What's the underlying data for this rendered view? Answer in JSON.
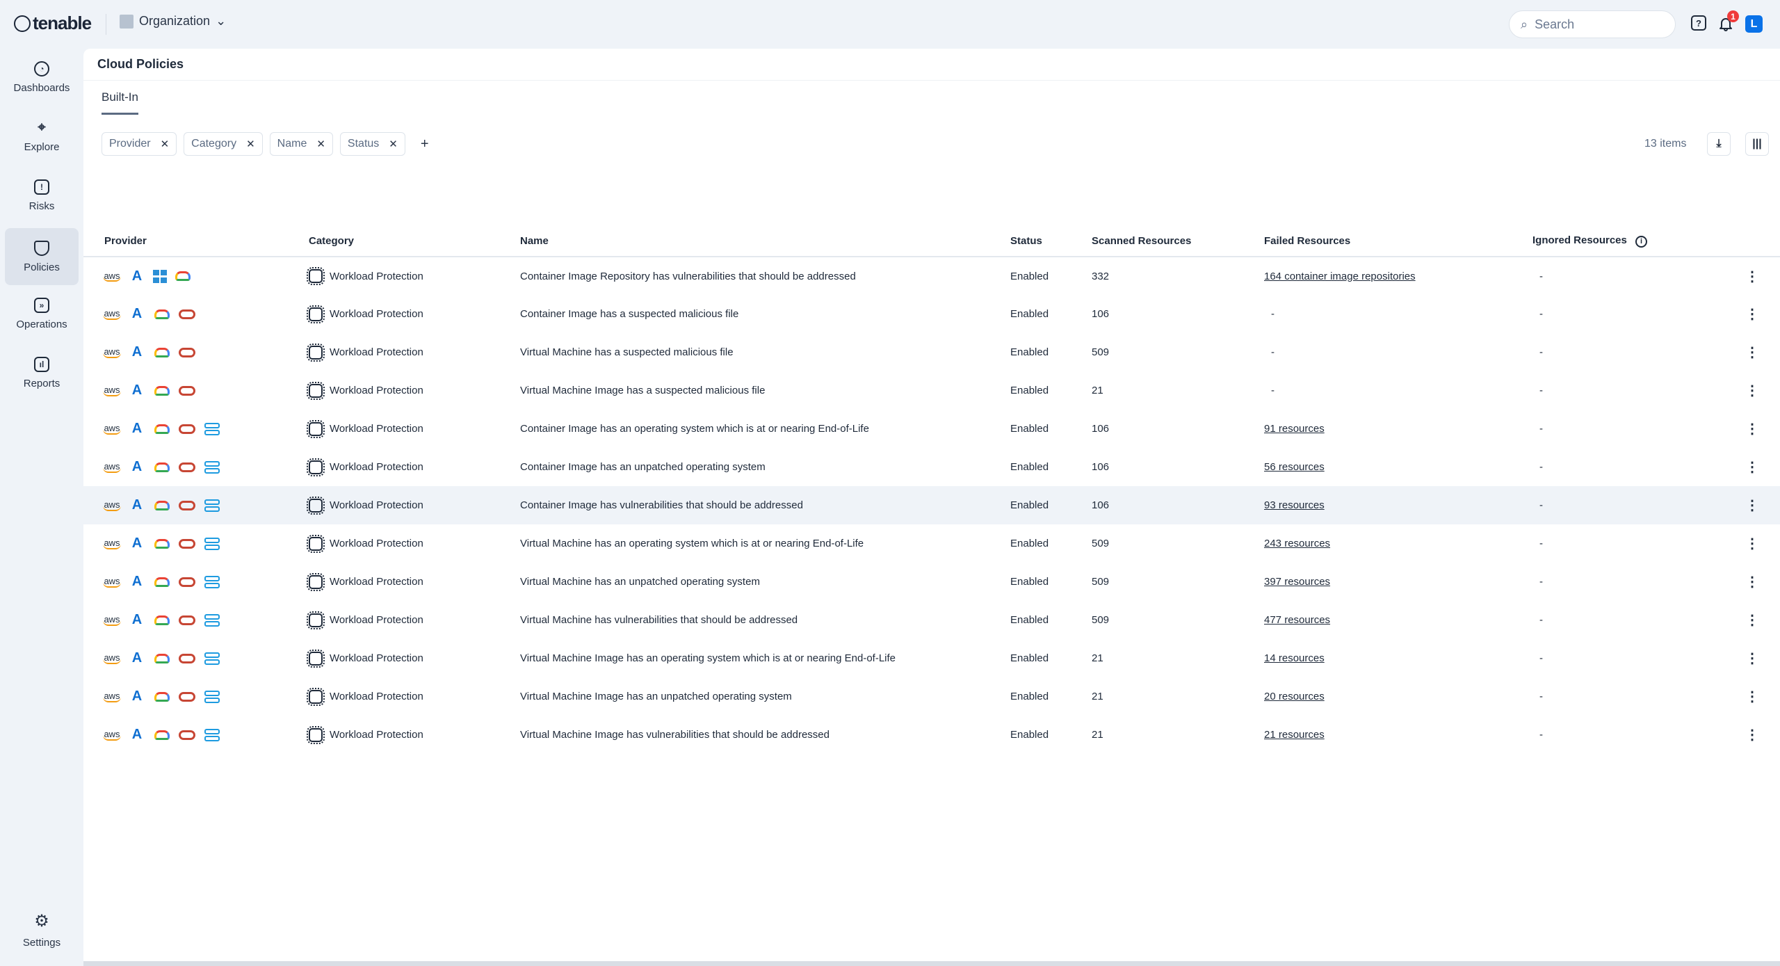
{
  "header": {
    "logo": "tenable",
    "org": "Organization",
    "search_placeholder": "Search",
    "notifications": "1",
    "avatar": "L",
    "help": "?"
  },
  "sidebar": {
    "items": [
      {
        "label": "Dashboards",
        "icon": "pie-chart-icon"
      },
      {
        "label": "Explore",
        "icon": "telescope-icon"
      },
      {
        "label": "Risks",
        "icon": "alert-icon"
      },
      {
        "label": "Policies",
        "icon": "shield-icon",
        "active": true
      },
      {
        "label": "Operations",
        "icon": "chevrons-icon"
      },
      {
        "label": "Reports",
        "icon": "bar-chart-icon"
      }
    ],
    "settings": "Settings"
  },
  "page": {
    "title": "Cloud Policies",
    "tab": "Built-In",
    "filters": [
      "Provider",
      "Category",
      "Name",
      "Status"
    ],
    "add": "+",
    "count": "13 items"
  },
  "table": {
    "columns": [
      "Provider",
      "Category",
      "Name",
      "Status",
      "Scanned Resources",
      "Failed Resources",
      "Ignored Resources"
    ],
    "rows": [
      {
        "providers": [
          "aws",
          "azure",
          "windows",
          "gcp"
        ],
        "category": "Workload Protection",
        "name": "Container Image Repository has vulnerabilities that should be addressed",
        "status": "Enabled",
        "scanned": "332",
        "failed": "164 container image repositories",
        "ignored": "-"
      },
      {
        "providers": [
          "aws",
          "azure",
          "gcp",
          "oracle"
        ],
        "category": "Workload Protection",
        "name": "Container Image has a suspected malicious file",
        "status": "Enabled",
        "scanned": "106",
        "failed": "-",
        "ignored": "-"
      },
      {
        "providers": [
          "aws",
          "azure",
          "gcp",
          "oracle"
        ],
        "category": "Workload Protection",
        "name": "Virtual Machine has a suspected malicious file",
        "status": "Enabled",
        "scanned": "509",
        "failed": "-",
        "ignored": "-"
      },
      {
        "providers": [
          "aws",
          "azure",
          "gcp",
          "oracle"
        ],
        "category": "Workload Protection",
        "name": "Virtual Machine Image has a suspected malicious file",
        "status": "Enabled",
        "scanned": "21",
        "failed": "-",
        "ignored": "-"
      },
      {
        "providers": [
          "aws",
          "azure",
          "gcp",
          "oracle",
          "server"
        ],
        "category": "Workload Protection",
        "name": "Container Image has an operating system which is at or nearing End-of-Life",
        "status": "Enabled",
        "scanned": "106",
        "failed": "91 resources",
        "ignored": "-"
      },
      {
        "providers": [
          "aws",
          "azure",
          "gcp",
          "oracle",
          "server"
        ],
        "category": "Workload Protection",
        "name": "Container Image has an unpatched operating system",
        "status": "Enabled",
        "scanned": "106",
        "failed": "56 resources",
        "ignored": "-"
      },
      {
        "providers": [
          "aws",
          "azure",
          "gcp",
          "oracle",
          "server"
        ],
        "category": "Workload Protection",
        "name": "Container Image has vulnerabilities that should be addressed",
        "status": "Enabled",
        "scanned": "106",
        "failed": "93 resources",
        "ignored": "-",
        "highlighted": true
      },
      {
        "providers": [
          "aws",
          "azure",
          "gcp",
          "oracle",
          "server"
        ],
        "category": "Workload Protection",
        "name": "Virtual Machine has an operating system which is at or nearing End-of-Life",
        "status": "Enabled",
        "scanned": "509",
        "failed": "243 resources",
        "ignored": "-"
      },
      {
        "providers": [
          "aws",
          "azure",
          "gcp",
          "oracle",
          "server"
        ],
        "category": "Workload Protection",
        "name": "Virtual Machine has an unpatched operating system",
        "status": "Enabled",
        "scanned": "509",
        "failed": "397 resources",
        "ignored": "-"
      },
      {
        "providers": [
          "aws",
          "azure",
          "gcp",
          "oracle",
          "server"
        ],
        "category": "Workload Protection",
        "name": "Virtual Machine has vulnerabilities that should be addressed",
        "status": "Enabled",
        "scanned": "509",
        "failed": "477 resources",
        "ignored": "-"
      },
      {
        "providers": [
          "aws",
          "azure",
          "gcp",
          "oracle",
          "server"
        ],
        "category": "Workload Protection",
        "name": "Virtual Machine Image has an operating system which is at or nearing End-of-Life",
        "status": "Enabled",
        "scanned": "21",
        "failed": "14 resources",
        "ignored": "-"
      },
      {
        "providers": [
          "aws",
          "azure",
          "gcp",
          "oracle",
          "server"
        ],
        "category": "Workload Protection",
        "name": "Virtual Machine Image has an unpatched operating system",
        "status": "Enabled",
        "scanned": "21",
        "failed": "20 resources",
        "ignored": "-"
      },
      {
        "providers": [
          "aws",
          "azure",
          "gcp",
          "oracle",
          "server"
        ],
        "category": "Workload Protection",
        "name": "Virtual Machine Image has vulnerabilities that should be addressed",
        "status": "Enabled",
        "scanned": "21",
        "failed": "21 resources",
        "ignored": "-"
      }
    ]
  }
}
